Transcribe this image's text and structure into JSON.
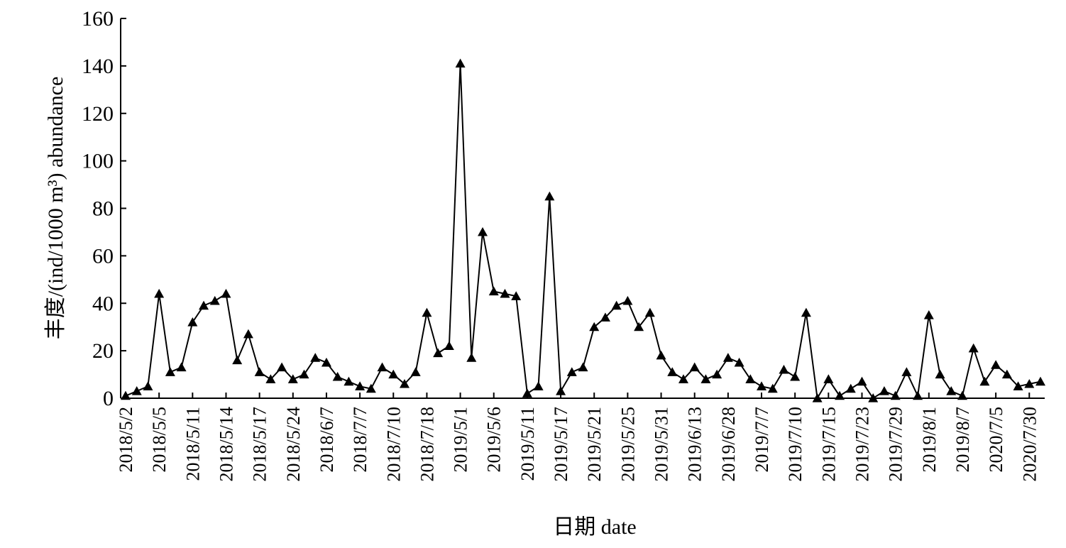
{
  "chart_data": {
    "type": "line",
    "title": "",
    "xlabel": "日期 date",
    "ylabel": "丰度/(ind/1000 m³) abundance",
    "ylim": [
      0,
      160
    ],
    "yticks": [
      0,
      20,
      40,
      60,
      80,
      100,
      120,
      140,
      160
    ],
    "grid": false,
    "legend": "none",
    "x_tick_labels": [
      "2018/5/2",
      "2018/5/5",
      "2018/5/11",
      "2018/5/14",
      "2018/5/17",
      "2018/5/24",
      "2018/6/7",
      "2018/7/7",
      "2018/7/10",
      "2018/7/18",
      "2019/5/1",
      "2019/5/6",
      "2019/5/11",
      "2019/5/17",
      "2019/5/21",
      "2019/5/25",
      "2019/5/31",
      "2019/6/13",
      "2019/6/28",
      "2019/7/7",
      "2019/7/10",
      "2019/7/15",
      "2019/7/23",
      "2019/7/29",
      "2019/8/1",
      "2019/8/7",
      "2020/7/5",
      "2020/7/30"
    ],
    "series": [
      {
        "marker": "triangle",
        "color": "#000000",
        "values": [
          1,
          3,
          5,
          44,
          11,
          13,
          32,
          39,
          41,
          44,
          16,
          27,
          11,
          8,
          13,
          8,
          10,
          17,
          15,
          9,
          7,
          5,
          4,
          13,
          10,
          6,
          11,
          36,
          19,
          22,
          141,
          17,
          70,
          45,
          44,
          43,
          2,
          5,
          85,
          3,
          11,
          13,
          30,
          34,
          39,
          41,
          30,
          36,
          18,
          11,
          8,
          13,
          8,
          10,
          17,
          15,
          8,
          5,
          4,
          12,
          9,
          36,
          0,
          8,
          1,
          4,
          7,
          0,
          3,
          1,
          11,
          1,
          35,
          10,
          3,
          1,
          21,
          7,
          14,
          10,
          5,
          6,
          7
        ]
      }
    ]
  }
}
